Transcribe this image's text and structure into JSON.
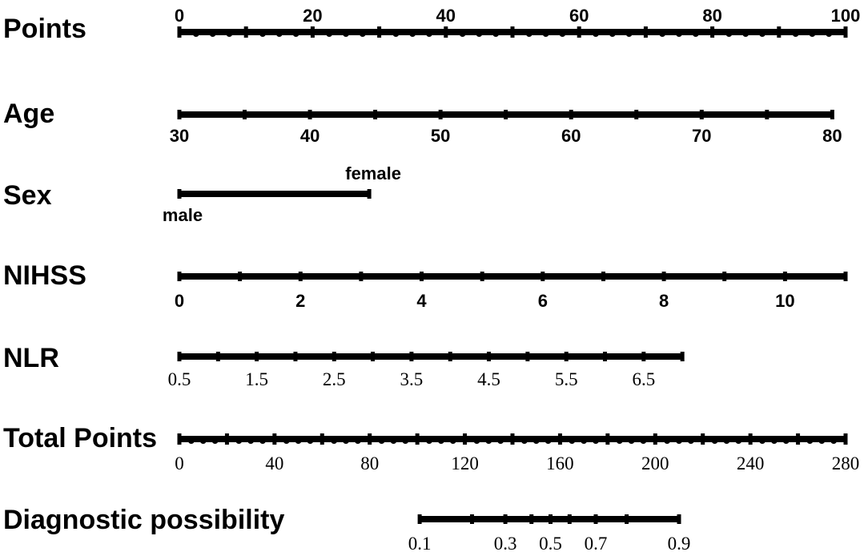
{
  "chart_data": {
    "type": "nomogram",
    "rows": [
      {
        "id": "points",
        "label": "Points",
        "min": 0,
        "max": 100,
        "tick_labels": [
          "0",
          "20",
          "40",
          "60",
          "80",
          "100"
        ],
        "tick_values": [
          0,
          20,
          40,
          60,
          80,
          100
        ],
        "label_side": "above",
        "minor_step": 2.5,
        "major_step": 10
      },
      {
        "id": "age",
        "label": "Age",
        "min": 30,
        "max": 80,
        "tick_labels": [
          "30",
          "40",
          "50",
          "60",
          "70",
          "80"
        ],
        "tick_values": [
          30,
          40,
          50,
          60,
          70,
          80
        ],
        "minor_step": 5,
        "label_side": "below"
      },
      {
        "id": "sex",
        "label": "Sex",
        "categories": [
          {
            "label": "male",
            "points": 0,
            "label_side": "below"
          },
          {
            "label": "female",
            "points": 28.5,
            "label_side": "above"
          }
        ]
      },
      {
        "id": "nihss",
        "label": "NIHSS",
        "min": 0,
        "max": 11,
        "tick_labels": [
          "0",
          "2",
          "4",
          "6",
          "8",
          "10"
        ],
        "tick_values": [
          0,
          2,
          4,
          6,
          8,
          10
        ],
        "minor_step": 1,
        "label_side": "below"
      },
      {
        "id": "nlr",
        "label": "NLR",
        "min": 0.5,
        "max": 7,
        "tick_labels": [
          "0.5",
          "1.5",
          "2.5",
          "3.5",
          "4.5",
          "5.5",
          "6.5"
        ],
        "tick_values": [
          0.5,
          1.5,
          2.5,
          3.5,
          4.5,
          5.5,
          6.5
        ],
        "minor_step": 0.5,
        "label_side": "below"
      },
      {
        "id": "total",
        "label": "Total Points",
        "min": 0,
        "max": 280,
        "tick_labels": [
          "0",
          "40",
          "80",
          "120",
          "160",
          "200",
          "240",
          "280"
        ],
        "tick_values": [
          0,
          40,
          80,
          120,
          160,
          200,
          240,
          280
        ],
        "minor_step": 5,
        "major_step": 20,
        "label_side": "below"
      },
      {
        "id": "prob",
        "label": "Diagnostic possibility",
        "tick_labels": [
          "0.1",
          "0.3",
          "0.5",
          "0.7",
          "0.9"
        ],
        "tick_values": [
          0.1,
          0.3,
          0.5,
          0.7,
          0.9
        ],
        "minor_values": [
          0.1,
          0.2,
          0.3,
          0.4,
          0.5,
          0.6,
          0.7,
          0.8,
          0.9
        ],
        "total_points_at": {
          "0.1": 101,
          "0.2": 123,
          "0.3": 137,
          "0.4": 148,
          "0.5": 156,
          "0.6": 164,
          "0.7": 175,
          "0.8": 188,
          "0.9": 210
        },
        "label_side": "below"
      }
    ],
    "age_points_at_max": 98,
    "nihss_points_at_max": 100,
    "nlr_points_at_max": 75.5
  }
}
